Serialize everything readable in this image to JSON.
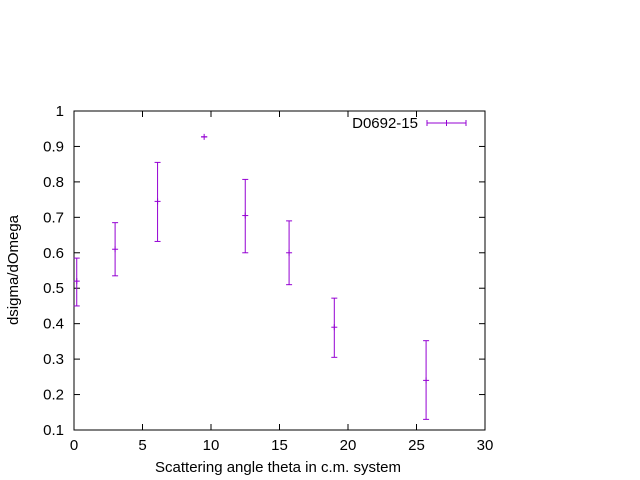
{
  "chart_data": {
    "type": "scatter",
    "title": "",
    "xlabel": "Scattering angle theta in c.m. system",
    "ylabel": "dsigma/dOmega",
    "xlim": [
      0,
      30
    ],
    "ylim": [
      0.1,
      1
    ],
    "x_ticks": [
      "0",
      "5",
      "10",
      "15",
      "20",
      "25",
      "30"
    ],
    "y_ticks": [
      "0.1",
      "0.2",
      "0.3",
      "0.4",
      "0.5",
      "0.6",
      "0.7",
      "0.8",
      "0.9",
      "1"
    ],
    "x_tick_values": [
      0,
      5,
      10,
      15,
      20,
      25,
      30
    ],
    "y_tick_values": [
      0.1,
      0.2,
      0.3,
      0.4,
      0.5,
      0.6,
      0.7,
      0.8,
      0.9,
      1
    ],
    "grid": false,
    "legend_position": "top-right",
    "series": [
      {
        "name": "D0692-15",
        "color": "#9400d3",
        "points": [
          {
            "x": 0.2,
            "y": 0.52,
            "yerr_low": 0.45,
            "yerr_high": 0.585
          },
          {
            "x": 3.0,
            "y": 0.61,
            "yerr_low": 0.535,
            "yerr_high": 0.685
          },
          {
            "x": 6.1,
            "y": 0.745,
            "yerr_low": 0.632,
            "yerr_high": 0.855
          },
          {
            "x": 9.5,
            "y": 0.927,
            "yerr_low": 0.927,
            "yerr_high": 0.927
          },
          {
            "x": 12.5,
            "y": 0.705,
            "yerr_low": 0.6,
            "yerr_high": 0.807
          },
          {
            "x": 15.7,
            "y": 0.6,
            "yerr_low": 0.51,
            "yerr_high": 0.69
          },
          {
            "x": 19.0,
            "y": 0.39,
            "yerr_low": 0.305,
            "yerr_high": 0.472
          },
          {
            "x": 25.7,
            "y": 0.24,
            "yerr_low": 0.13,
            "yerr_high": 0.352
          }
        ]
      }
    ]
  }
}
